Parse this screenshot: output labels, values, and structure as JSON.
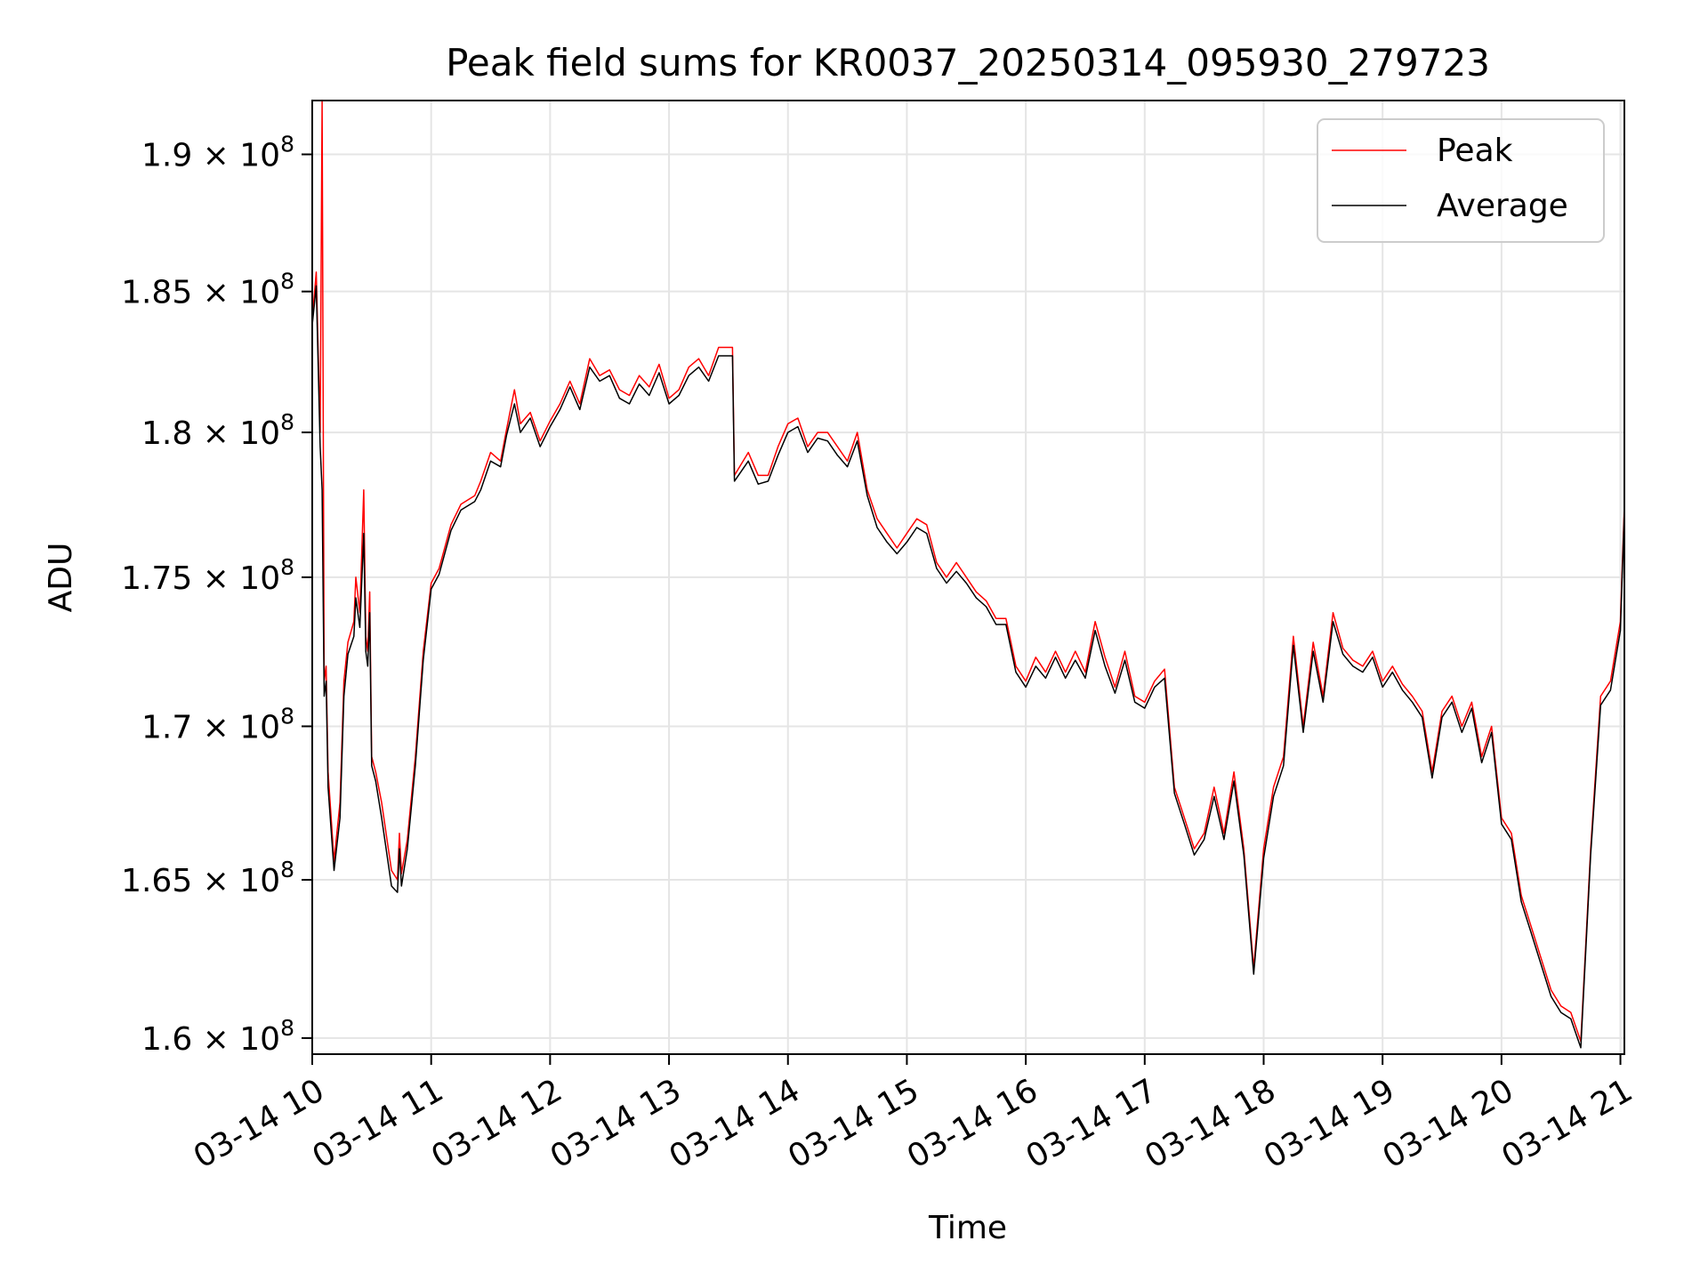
{
  "chart_data": {
    "type": "line",
    "title": "Peak field sums for KR0037_20250314_095930_279723",
    "xlabel": "Time",
    "ylabel": "ADU",
    "yscale": "log",
    "grid": true,
    "legend_position": "top-right",
    "xlim": [
      "2025-03-14 10:00",
      "2025-03-14 21:02"
    ],
    "ylim": [
      159500000,
      192000000
    ],
    "x_ticks": [
      "2025-03-14 10:00",
      "2025-03-14 11:00",
      "2025-03-14 12:00",
      "2025-03-14 13:00",
      "2025-03-14 14:00",
      "2025-03-14 15:00",
      "2025-03-14 16:00",
      "2025-03-14 17:00",
      "2025-03-14 18:00",
      "2025-03-14 19:00",
      "2025-03-14 20:00",
      "2025-03-14 21:00"
    ],
    "x_tick_labels": [
      "03-14 10",
      "03-14 11",
      "03-14 12",
      "03-14 13",
      "03-14 14",
      "03-14 15",
      "03-14 16",
      "03-14 17",
      "03-14 18",
      "03-14 19",
      "03-14 20",
      "03-14 21"
    ],
    "y_ticks": [
      160000000,
      165000000,
      170000000,
      175000000,
      180000000,
      185000000,
      190000000
    ],
    "y_tick_labels": [
      {
        "mantissa": "1.6",
        "exp": "8"
      },
      {
        "mantissa": "1.65",
        "exp": "8"
      },
      {
        "mantissa": "1.7",
        "exp": "8"
      },
      {
        "mantissa": "1.75",
        "exp": "8"
      },
      {
        "mantissa": "1.8",
        "exp": "8"
      },
      {
        "mantissa": "1.85",
        "exp": "8"
      },
      {
        "mantissa": "1.9",
        "exp": "8"
      }
    ],
    "series": [
      {
        "name": "Peak",
        "color": "#ff0000",
        "x": [
          "2025-03-14 10:00",
          "2025-03-14 10:02",
          "2025-03-14 10:04",
          "2025-03-14 10:05",
          "2025-03-14 10:06",
          "2025-03-14 10:07",
          "2025-03-14 10:08",
          "2025-03-14 10:11",
          "2025-03-14 10:14",
          "2025-03-14 10:16",
          "2025-03-14 10:18",
          "2025-03-14 10:21",
          "2025-03-14 10:22",
          "2025-03-14 10:24",
          "2025-03-14 10:26",
          "2025-03-14 10:27",
          "2025-03-14 10:28",
          "2025-03-14 10:29",
          "2025-03-14 10:30",
          "2025-03-14 10:32",
          "2025-03-14 10:35",
          "2025-03-14 10:40",
          "2025-03-14 10:43",
          "2025-03-14 10:44",
          "2025-03-14 10:45",
          "2025-03-14 10:48",
          "2025-03-14 10:52",
          "2025-03-14 10:56",
          "2025-03-14 11:00",
          "2025-03-14 11:04",
          "2025-03-14 11:10",
          "2025-03-14 11:15",
          "2025-03-14 11:22",
          "2025-03-14 11:25",
          "2025-03-14 11:30",
          "2025-03-14 11:35",
          "2025-03-14 11:38",
          "2025-03-14 11:42",
          "2025-03-14 11:45",
          "2025-03-14 11:50",
          "2025-03-14 11:55",
          "2025-03-14 12:00",
          "2025-03-14 12:05",
          "2025-03-14 12:10",
          "2025-03-14 12:15",
          "2025-03-14 12:20",
          "2025-03-14 12:25",
          "2025-03-14 12:30",
          "2025-03-14 12:35",
          "2025-03-14 12:40",
          "2025-03-14 12:45",
          "2025-03-14 12:50",
          "2025-03-14 12:55",
          "2025-03-14 13:00",
          "2025-03-14 13:05",
          "2025-03-14 13:10",
          "2025-03-14 13:15",
          "2025-03-14 13:20",
          "2025-03-14 13:25",
          "2025-03-14 13:32",
          "2025-03-14 13:33",
          "2025-03-14 13:40",
          "2025-03-14 13:45",
          "2025-03-14 13:50",
          "2025-03-14 13:55",
          "2025-03-14 14:00",
          "2025-03-14 14:05",
          "2025-03-14 14:10",
          "2025-03-14 14:15",
          "2025-03-14 14:20",
          "2025-03-14 14:25",
          "2025-03-14 14:30",
          "2025-03-14 14:35",
          "2025-03-14 14:40",
          "2025-03-14 14:45",
          "2025-03-14 14:50",
          "2025-03-14 14:55",
          "2025-03-14 15:00",
          "2025-03-14 15:05",
          "2025-03-14 15:10",
          "2025-03-14 15:15",
          "2025-03-14 15:20",
          "2025-03-14 15:25",
          "2025-03-14 15:30",
          "2025-03-14 15:35",
          "2025-03-14 15:40",
          "2025-03-14 15:45",
          "2025-03-14 15:50",
          "2025-03-14 15:55",
          "2025-03-14 16:00",
          "2025-03-14 16:05",
          "2025-03-14 16:10",
          "2025-03-14 16:15",
          "2025-03-14 16:20",
          "2025-03-14 16:25",
          "2025-03-14 16:30",
          "2025-03-14 16:35",
          "2025-03-14 16:40",
          "2025-03-14 16:45",
          "2025-03-14 16:50",
          "2025-03-14 16:55",
          "2025-03-14 17:00",
          "2025-03-14 17:05",
          "2025-03-14 17:10",
          "2025-03-14 17:15",
          "2025-03-14 17:20",
          "2025-03-14 17:25",
          "2025-03-14 17:30",
          "2025-03-14 17:35",
          "2025-03-14 17:40",
          "2025-03-14 17:45",
          "2025-03-14 17:50",
          "2025-03-14 17:55",
          "2025-03-14 18:00",
          "2025-03-14 18:05",
          "2025-03-14 18:10",
          "2025-03-14 18:15",
          "2025-03-14 18:20",
          "2025-03-14 18:25",
          "2025-03-14 18:30",
          "2025-03-14 18:35",
          "2025-03-14 18:40",
          "2025-03-14 18:45",
          "2025-03-14 18:50",
          "2025-03-14 18:55",
          "2025-03-14 19:00",
          "2025-03-14 19:05",
          "2025-03-14 19:10",
          "2025-03-14 19:15",
          "2025-03-14 19:20",
          "2025-03-14 19:25",
          "2025-03-14 19:30",
          "2025-03-14 19:35",
          "2025-03-14 19:40",
          "2025-03-14 19:45",
          "2025-03-14 19:50",
          "2025-03-14 19:55",
          "2025-03-14 20:00",
          "2025-03-14 20:05",
          "2025-03-14 20:10",
          "2025-03-14 20:15",
          "2025-03-14 20:20",
          "2025-03-14 20:25",
          "2025-03-14 20:30",
          "2025-03-14 20:35",
          "2025-03-14 20:40",
          "2025-03-14 20:45",
          "2025-03-14 20:50",
          "2025-03-14 20:55",
          "2025-03-14 21:00",
          "2025-03-14 21:02"
        ],
        "values": [
          184000000,
          185700000,
          180000000,
          192000000,
          171500000,
          172000000,
          168500000,
          165600000,
          167500000,
          171500000,
          172800000,
          173500000,
          175000000,
          173800000,
          178000000,
          173000000,
          172500000,
          174500000,
          169000000,
          168500000,
          167500000,
          165300000,
          165000000,
          166500000,
          165200000,
          166300000,
          169000000,
          172500000,
          174800000,
          175300000,
          176800000,
          177500000,
          177800000,
          178300000,
          179300000,
          179000000,
          180100000,
          181500000,
          180300000,
          180700000,
          179700000,
          180400000,
          181000000,
          181800000,
          181000000,
          182600000,
          182000000,
          182200000,
          181500000,
          181300000,
          182000000,
          181600000,
          182400000,
          181200000,
          181500000,
          182300000,
          182600000,
          182000000,
          183000000,
          183000000,
          178500000,
          179300000,
          178500000,
          178500000,
          179500000,
          180300000,
          180500000,
          179500000,
          180000000,
          180000000,
          179500000,
          179000000,
          180000000,
          178000000,
          177000000,
          176500000,
          176000000,
          176500000,
          177000000,
          176800000,
          175500000,
          175000000,
          175500000,
          175000000,
          174500000,
          174200000,
          173600000,
          173600000,
          172000000,
          171500000,
          172300000,
          171800000,
          172500000,
          171800000,
          172500000,
          171800000,
          173500000,
          172300000,
          171300000,
          172500000,
          171000000,
          170800000,
          171500000,
          171900000,
          168000000,
          167000000,
          166000000,
          166500000,
          168000000,
          166500000,
          168500000,
          166000000,
          162200000,
          166000000,
          168000000,
          169000000,
          173000000,
          170000000,
          172800000,
          171000000,
          173800000,
          172600000,
          172200000,
          172000000,
          172500000,
          171500000,
          172000000,
          171400000,
          171000000,
          170500000,
          168500000,
          170500000,
          171000000,
          170000000,
          170800000,
          169000000,
          170000000,
          167000000,
          166500000,
          164500000,
          163500000,
          162500000,
          161500000,
          161000000,
          160800000,
          159900000,
          166000000,
          171000000,
          171500000,
          173500000,
          177500000
        ]
      },
      {
        "name": "Average",
        "color": "#000000",
        "x": [
          "2025-03-14 10:00",
          "2025-03-14 10:02",
          "2025-03-14 10:04",
          "2025-03-14 10:05",
          "2025-03-14 10:06",
          "2025-03-14 10:07",
          "2025-03-14 10:08",
          "2025-03-14 10:11",
          "2025-03-14 10:14",
          "2025-03-14 10:16",
          "2025-03-14 10:18",
          "2025-03-14 10:21",
          "2025-03-14 10:22",
          "2025-03-14 10:24",
          "2025-03-14 10:26",
          "2025-03-14 10:27",
          "2025-03-14 10:28",
          "2025-03-14 10:29",
          "2025-03-14 10:30",
          "2025-03-14 10:32",
          "2025-03-14 10:35",
          "2025-03-14 10:40",
          "2025-03-14 10:43",
          "2025-03-14 10:44",
          "2025-03-14 10:45",
          "2025-03-14 10:48",
          "2025-03-14 10:52",
          "2025-03-14 10:56",
          "2025-03-14 11:00",
          "2025-03-14 11:04",
          "2025-03-14 11:10",
          "2025-03-14 11:15",
          "2025-03-14 11:22",
          "2025-03-14 11:25",
          "2025-03-14 11:30",
          "2025-03-14 11:35",
          "2025-03-14 11:38",
          "2025-03-14 11:42",
          "2025-03-14 11:45",
          "2025-03-14 11:50",
          "2025-03-14 11:55",
          "2025-03-14 12:00",
          "2025-03-14 12:05",
          "2025-03-14 12:10",
          "2025-03-14 12:15",
          "2025-03-14 12:20",
          "2025-03-14 12:25",
          "2025-03-14 12:30",
          "2025-03-14 12:35",
          "2025-03-14 12:40",
          "2025-03-14 12:45",
          "2025-03-14 12:50",
          "2025-03-14 12:55",
          "2025-03-14 13:00",
          "2025-03-14 13:05",
          "2025-03-14 13:10",
          "2025-03-14 13:15",
          "2025-03-14 13:20",
          "2025-03-14 13:25",
          "2025-03-14 13:32",
          "2025-03-14 13:33",
          "2025-03-14 13:40",
          "2025-03-14 13:45",
          "2025-03-14 13:50",
          "2025-03-14 13:55",
          "2025-03-14 14:00",
          "2025-03-14 14:05",
          "2025-03-14 14:10",
          "2025-03-14 14:15",
          "2025-03-14 14:20",
          "2025-03-14 14:25",
          "2025-03-14 14:30",
          "2025-03-14 14:35",
          "2025-03-14 14:40",
          "2025-03-14 14:45",
          "2025-03-14 14:50",
          "2025-03-14 14:55",
          "2025-03-14 15:00",
          "2025-03-14 15:05",
          "2025-03-14 15:10",
          "2025-03-14 15:15",
          "2025-03-14 15:20",
          "2025-03-14 15:25",
          "2025-03-14 15:30",
          "2025-03-14 15:35",
          "2025-03-14 15:40",
          "2025-03-14 15:45",
          "2025-03-14 15:50",
          "2025-03-14 15:55",
          "2025-03-14 16:00",
          "2025-03-14 16:05",
          "2025-03-14 16:10",
          "2025-03-14 16:15",
          "2025-03-14 16:20",
          "2025-03-14 16:25",
          "2025-03-14 16:30",
          "2025-03-14 16:35",
          "2025-03-14 16:40",
          "2025-03-14 16:45",
          "2025-03-14 16:50",
          "2025-03-14 16:55",
          "2025-03-14 17:00",
          "2025-03-14 17:05",
          "2025-03-14 17:10",
          "2025-03-14 17:15",
          "2025-03-14 17:20",
          "2025-03-14 17:25",
          "2025-03-14 17:30",
          "2025-03-14 17:35",
          "2025-03-14 17:40",
          "2025-03-14 17:45",
          "2025-03-14 17:50",
          "2025-03-14 17:55",
          "2025-03-14 18:00",
          "2025-03-14 18:05",
          "2025-03-14 18:10",
          "2025-03-14 18:15",
          "2025-03-14 18:20",
          "2025-03-14 18:25",
          "2025-03-14 18:30",
          "2025-03-14 18:35",
          "2025-03-14 18:40",
          "2025-03-14 18:45",
          "2025-03-14 18:50",
          "2025-03-14 18:55",
          "2025-03-14 19:00",
          "2025-03-14 19:05",
          "2025-03-14 19:10",
          "2025-03-14 19:15",
          "2025-03-14 19:20",
          "2025-03-14 19:25",
          "2025-03-14 19:30",
          "2025-03-14 19:35",
          "2025-03-14 19:40",
          "2025-03-14 19:45",
          "2025-03-14 19:50",
          "2025-03-14 19:55",
          "2025-03-14 20:00",
          "2025-03-14 20:05",
          "2025-03-14 20:10",
          "2025-03-14 20:15",
          "2025-03-14 20:20",
          "2025-03-14 20:25",
          "2025-03-14 20:30",
          "2025-03-14 20:35",
          "2025-03-14 20:40",
          "2025-03-14 20:45",
          "2025-03-14 20:50",
          "2025-03-14 20:55",
          "2025-03-14 21:00",
          "2025-03-14 21:02"
        ],
        "values": [
          183800000,
          185200000,
          179500000,
          178000000,
          171000000,
          171500000,
          168000000,
          165300000,
          167000000,
          171000000,
          172400000,
          173000000,
          174300000,
          173300000,
          176500000,
          172500000,
          172000000,
          173800000,
          168700000,
          168200000,
          167000000,
          164800000,
          164600000,
          166000000,
          164800000,
          166000000,
          168700000,
          172200000,
          174600000,
          175100000,
          176600000,
          177300000,
          177600000,
          178000000,
          179000000,
          178800000,
          179900000,
          181000000,
          180000000,
          180500000,
          179500000,
          180200000,
          180800000,
          181600000,
          180800000,
          182300000,
          181800000,
          182000000,
          181200000,
          181000000,
          181700000,
          181300000,
          182100000,
          181000000,
          181300000,
          182000000,
          182300000,
          181800000,
          182700000,
          182700000,
          178300000,
          179000000,
          178200000,
          178300000,
          179200000,
          180000000,
          180200000,
          179300000,
          179800000,
          179700000,
          179200000,
          178800000,
          179700000,
          177800000,
          176700000,
          176200000,
          175800000,
          176200000,
          176700000,
          176500000,
          175300000,
          174800000,
          175200000,
          174800000,
          174300000,
          174000000,
          173400000,
          173400000,
          171800000,
          171300000,
          172000000,
          171600000,
          172300000,
          171600000,
          172200000,
          171600000,
          173200000,
          172000000,
          171100000,
          172200000,
          170800000,
          170600000,
          171300000,
          171600000,
          167800000,
          166800000,
          165800000,
          166300000,
          167700000,
          166300000,
          168200000,
          165800000,
          162000000,
          165700000,
          167700000,
          168700000,
          172700000,
          169800000,
          172500000,
          170800000,
          173500000,
          172400000,
          172000000,
          171800000,
          172300000,
          171300000,
          171800000,
          171200000,
          170800000,
          170300000,
          168300000,
          170300000,
          170800000,
          169800000,
          170600000,
          168800000,
          169800000,
          166800000,
          166300000,
          164300000,
          163300000,
          162300000,
          161300000,
          160800000,
          160600000,
          159700000,
          165800000,
          170700000,
          171200000,
          173200000,
          177300000
        ]
      }
    ]
  }
}
